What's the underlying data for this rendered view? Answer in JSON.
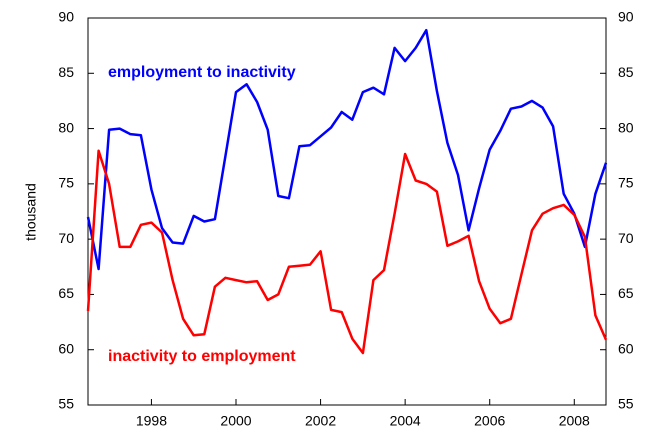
{
  "chart_data": {
    "type": "line",
    "y_label": "thousand",
    "x": [
      1997,
      1997.25,
      1997.5,
      1997.75,
      1998,
      1998.25,
      1998.5,
      1998.75,
      1999,
      1999.25,
      1999.5,
      1999.75,
      2000,
      2000.25,
      2000.5,
      2000.75,
      2001,
      2001.25,
      2001.5,
      2001.75,
      2002,
      2002.25,
      2002.5,
      2002.75,
      2003,
      2003.25,
      2003.5,
      2003.75,
      2004,
      2004.25,
      2004.5,
      2004.75,
      2005,
      2005.25,
      2005.5,
      2005.75,
      2006,
      2006.25,
      2006.5,
      2006.75,
      2007,
      2007.25,
      2007.5,
      2007.75,
      2008,
      2008.25,
      2008.5,
      2008.75,
      2009,
      2009.25
    ],
    "series": [
      {
        "name": "employment to inactivity",
        "color": "#0000ff",
        "values": [
          72,
          67.3,
          79.9,
          80,
          79.5,
          79.4,
          74.5,
          71,
          69.7,
          69.6,
          72.1,
          71.6,
          71.8,
          77.5,
          83.3,
          84,
          82.4,
          79.9,
          73.9,
          73.7,
          78.4,
          78.5,
          79.3,
          80.1,
          81.5,
          80.8,
          83.3,
          83.7,
          83.1,
          87.3,
          86.1,
          87.3,
          88.9,
          83.4,
          78.7,
          75.8,
          70.8,
          74.6,
          78.1,
          79.8,
          81.8,
          82,
          82.5,
          81.9,
          80.2,
          74.1,
          72.3,
          69.3,
          74.1,
          76.9
        ]
      },
      {
        "name": "inactivity to employment",
        "color": "#ff0000",
        "values": [
          63.5,
          78,
          75,
          69.3,
          69.3,
          71.3,
          71.5,
          70.6,
          66.3,
          62.8,
          61.3,
          61.4,
          65.7,
          66.5,
          66.3,
          66.1,
          66.2,
          64.5,
          65,
          67.5,
          67.6,
          67.7,
          68.9,
          63.6,
          63.4,
          61,
          59.7,
          66.3,
          67.2,
          72.3,
          77.7,
          75.3,
          75,
          74.3,
          69.4,
          69.8,
          70.3,
          66.2,
          63.7,
          62.4,
          62.8,
          66.8,
          70.8,
          72.3,
          72.8,
          73.1,
          72.2,
          70.2,
          63.1,
          60.9
        ]
      }
    ],
    "xlim": [
      1997,
      2009.25
    ],
    "xticks": [
      {
        "value": 1998.5,
        "label": "1998"
      },
      {
        "value": 2000.5,
        "label": "2000"
      },
      {
        "value": 2002.5,
        "label": "2002"
      },
      {
        "value": 2004.5,
        "label": "2004"
      },
      {
        "value": 2006.5,
        "label": "2006"
      },
      {
        "value": 2008.5,
        "label": "2008"
      }
    ],
    "ylim": [
      55,
      90
    ],
    "yticks": [
      55,
      60,
      65,
      70,
      75,
      80,
      85,
      90
    ],
    "grid": false
  }
}
